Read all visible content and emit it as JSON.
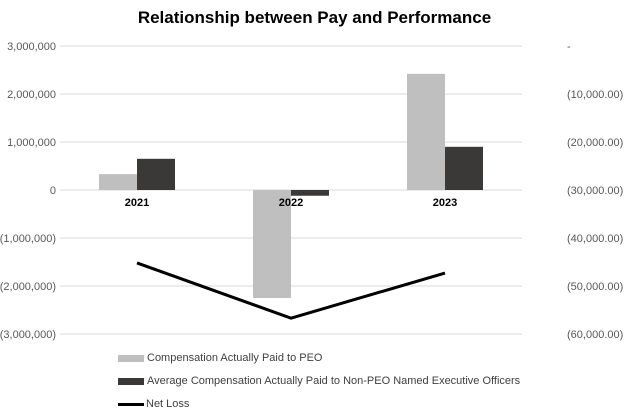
{
  "chart_data": {
    "type": "bar",
    "title": "Relationship between Pay and Performance",
    "categories": [
      "2021",
      "2022",
      "2023"
    ],
    "series": [
      {
        "name": "Compensation Actually Paid to PEO",
        "type": "bar",
        "axis": "left",
        "color": "#bfbfbf",
        "values": [
          330000,
          -2250000,
          2420000
        ]
      },
      {
        "name": "Average Compensation Actually Paid to Non-PEO Named Executive Officers",
        "type": "bar",
        "axis": "left",
        "color": "#3b3838",
        "values": [
          650000,
          -120000,
          900000
        ]
      },
      {
        "name": "Net Loss",
        "type": "line",
        "axis": "right",
        "color": "#000000",
        "values": [
          -45200,
          -56700,
          -47300
        ]
      }
    ],
    "left_axis": {
      "ylim": [
        -3000000,
        3000000
      ],
      "ticks": [
        "3,000,000",
        "2,000,000",
        "1,000,000",
        "0",
        "(1,000,000)",
        "(2,000,000)",
        "(3,000,000)"
      ]
    },
    "right_axis": {
      "ylim": [
        -60000,
        0
      ],
      "ticks": [
        "-",
        "(10,000.00)",
        "(20,000.00)",
        "(30,000.00)",
        "(40,000.00)",
        "(50,000.00)",
        "(60,000.00)"
      ]
    },
    "xlabel": "",
    "ylabel": "",
    "grid": true,
    "legend_position": "bottom-left"
  }
}
